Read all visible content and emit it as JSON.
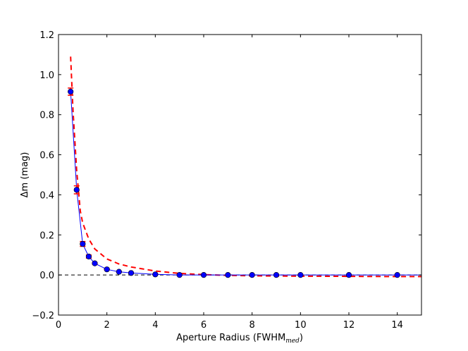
{
  "chart_data": {
    "type": "line",
    "title": "",
    "xlabel": "Aperture Radius (FWHM",
    "xlabel_subscript": "med",
    "xlabel_close": ")",
    "ylabel": "Δm (mag)",
    "xlim": [
      0,
      15
    ],
    "ylim": [
      -0.2,
      1.2
    ],
    "xticks": [
      0,
      2,
      4,
      6,
      8,
      10,
      12,
      14
    ],
    "yticks": [
      -0.2,
      0.0,
      0.2,
      0.4,
      0.6,
      0.8,
      1.0,
      1.2
    ],
    "ytick_labels": [
      "−0.2",
      "0.0",
      "0.2",
      "0.4",
      "0.6",
      "0.8",
      "1.0",
      "1.2"
    ],
    "grid": false,
    "colors": {
      "measured": "#0000ff",
      "model": "#ff0000",
      "zero": "#000000"
    },
    "series": [
      {
        "style": "blue-line-with-markers-and-red-errorbars",
        "x": [
          0.5,
          0.75,
          1.0,
          1.25,
          1.5,
          2.0,
          2.5,
          3.0,
          4.0,
          5.0,
          6.0,
          7.0,
          8.0,
          9.0,
          10.0,
          12.0,
          14.0,
          15.0
        ],
        "y": [
          0.915,
          0.425,
          0.155,
          0.092,
          0.058,
          0.028,
          0.016,
          0.01,
          0.003,
          0.0,
          0.0,
          0.0,
          0.0,
          0.0,
          0.0,
          0.0,
          0.0,
          0.0
        ],
        "yerr": [
          0.018,
          0.02,
          0.012,
          0.008,
          0.004,
          0.003,
          0.002,
          0.002,
          0.002,
          0.002,
          0.002,
          0.002,
          0.002,
          0.002,
          0.002,
          0.002,
          0.002,
          0
        ],
        "marker": [
          true,
          true,
          true,
          true,
          true,
          true,
          true,
          true,
          true,
          true,
          true,
          true,
          true,
          true,
          true,
          true,
          true,
          false
        ]
      },
      {
        "style": "red-dashed",
        "x": [
          0.5,
          0.6,
          0.75,
          0.9,
          1.0,
          1.25,
          1.5,
          2.0,
          2.5,
          3.0,
          4.0,
          5.0,
          6.0,
          7.0,
          8.0,
          9.0,
          10.0,
          12.0,
          14.0,
          15.0
        ],
        "y": [
          1.09,
          0.82,
          0.52,
          0.32,
          0.26,
          0.18,
          0.13,
          0.08,
          0.055,
          0.04,
          0.02,
          0.008,
          0.002,
          -0.002,
          -0.004,
          -0.005,
          -0.006,
          -0.007,
          -0.008,
          -0.008
        ]
      },
      {
        "style": "black-dashed-zero-line",
        "x": [
          0,
          15
        ],
        "y": [
          0,
          0
        ]
      }
    ]
  }
}
